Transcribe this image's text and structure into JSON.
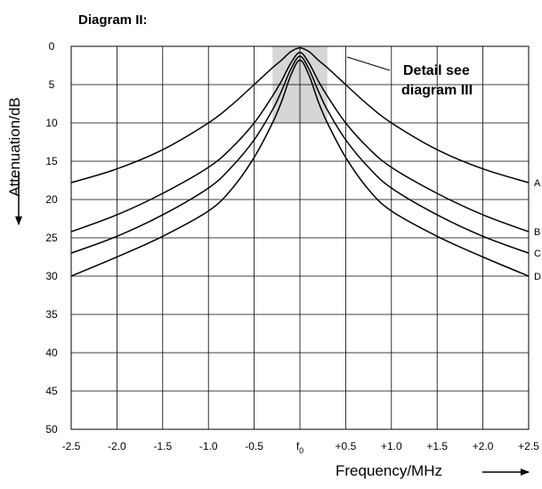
{
  "chart_data": {
    "type": "line",
    "title": "Diagram II:",
    "xlabel": "Frequency/MHz",
    "ylabel": "Attenuation/dB",
    "xlim": [
      -2.5,
      2.5
    ],
    "ylim": [
      0,
      50
    ],
    "y_inverted": true,
    "grid": true,
    "x_ticks": [
      -2.5,
      -2.0,
      -1.5,
      -1.0,
      -0.5,
      0,
      0.5,
      1.0,
      1.5,
      2.0,
      2.5
    ],
    "x_tick_labels": [
      "-2.5",
      "-2.0",
      "-1.5",
      "-1.0",
      "-0.5",
      "f0",
      "+0.5",
      "+1.0",
      "+1.5",
      "+2.0",
      "+2.5"
    ],
    "y_ticks": [
      0,
      5,
      10,
      15,
      20,
      25,
      30,
      35,
      40,
      45,
      50
    ],
    "y_tick_labels": [
      "0",
      "5",
      "10",
      "15",
      "20",
      "25",
      "30",
      "35",
      "40",
      "45",
      "50"
    ],
    "highlight_region": {
      "x": [
        -0.3,
        0.3
      ],
      "y": [
        0,
        10
      ]
    },
    "annotation": {
      "line1": "Detail see",
      "line2": "diagram III"
    },
    "series": [
      {
        "name": "A",
        "color": "#000000",
        "x": [
          -2.5,
          -2.0,
          -1.5,
          -1.0,
          -0.75,
          -0.5,
          -0.3,
          -0.2,
          -0.1,
          0,
          0.1,
          0.2,
          0.3,
          0.5,
          0.75,
          1.0,
          1.5,
          2.0,
          2.5
        ],
        "y": [
          17.8,
          16.0,
          13.5,
          10.0,
          7.7,
          5.0,
          2.8,
          1.8,
          0.7,
          0.2,
          0.7,
          1.8,
          2.8,
          5.0,
          7.7,
          10.0,
          13.5,
          16.0,
          17.8
        ]
      },
      {
        "name": "B",
        "color": "#000000",
        "x": [
          -2.5,
          -2.0,
          -1.5,
          -1.0,
          -0.75,
          -0.5,
          -0.3,
          -0.2,
          -0.1,
          0,
          0.1,
          0.2,
          0.3,
          0.5,
          0.75,
          1.0,
          1.5,
          2.0,
          2.5
        ],
        "y": [
          24.2,
          22.0,
          19.2,
          15.8,
          13.3,
          10.0,
          6.5,
          4.5,
          2.2,
          0.8,
          2.2,
          4.5,
          6.5,
          10.0,
          13.3,
          15.8,
          19.2,
          22.0,
          24.2
        ]
      },
      {
        "name": "C",
        "color": "#000000",
        "x": [
          -2.5,
          -2.0,
          -1.5,
          -1.0,
          -0.75,
          -0.5,
          -0.3,
          -0.2,
          -0.1,
          0,
          0.1,
          0.2,
          0.3,
          0.5,
          0.75,
          1.0,
          1.5,
          2.0,
          2.5
        ],
        "y": [
          27.0,
          24.8,
          22.0,
          18.5,
          15.8,
          12.2,
          8.3,
          5.8,
          3.0,
          1.3,
          3.0,
          5.8,
          8.3,
          12.2,
          15.8,
          18.5,
          22.0,
          24.8,
          27.0
        ]
      },
      {
        "name": "D",
        "color": "#000000",
        "x": [
          -2.5,
          -2.0,
          -1.5,
          -1.0,
          -0.75,
          -0.5,
          -0.3,
          -0.2,
          -0.1,
          0,
          0.1,
          0.2,
          0.3,
          0.5,
          0.75,
          1.0,
          1.5,
          2.0,
          2.5
        ],
        "y": [
          30.0,
          27.5,
          24.8,
          21.5,
          18.7,
          14.5,
          10.0,
          7.2,
          3.8,
          1.8,
          3.8,
          7.2,
          10.0,
          14.5,
          18.7,
          21.5,
          24.8,
          27.5,
          30.0
        ]
      }
    ]
  }
}
